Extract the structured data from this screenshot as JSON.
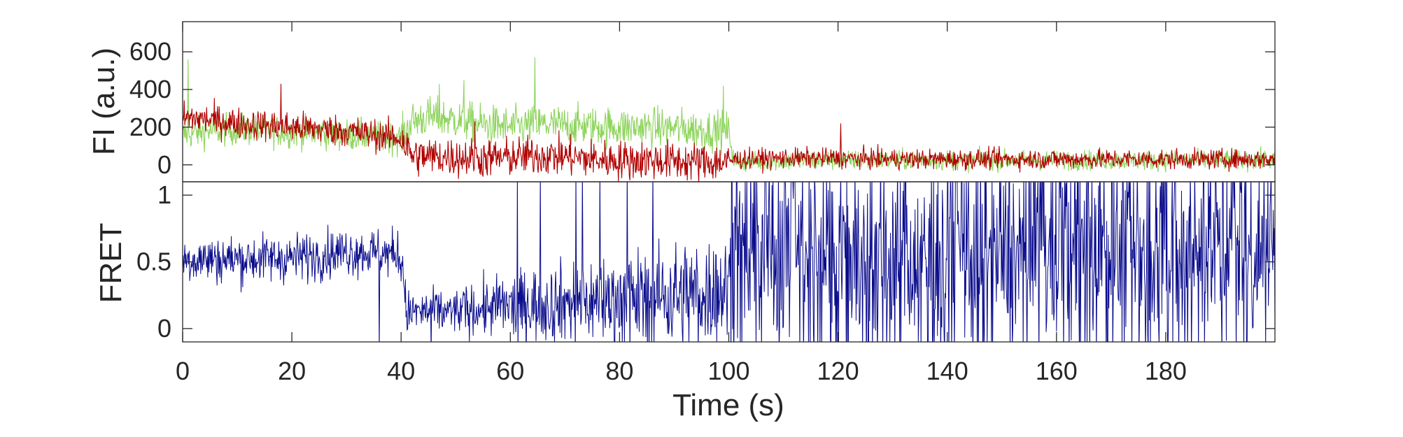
{
  "chart_data": [
    {
      "type": "line",
      "ylabel": "FI (a.u.)",
      "xlim": [
        0,
        200
      ],
      "ylim": [
        -90,
        760
      ],
      "yticks": [
        0,
        200,
        400,
        600
      ],
      "ytick_labels": [
        "0",
        "200",
        "400",
        "600"
      ],
      "grid": false,
      "colors": {
        "donor": "#8fd45e",
        "acceptor": "#b00000"
      },
      "series": [
        {
          "key": "donor",
          "x": [
            0,
            5,
            10,
            15,
            20,
            25,
            30,
            35,
            40,
            42,
            45,
            50,
            55,
            60,
            65,
            70,
            75,
            80,
            85,
            90,
            95,
            100,
            101,
            110,
            120,
            130,
            140,
            150,
            160,
            170,
            180,
            190,
            200
          ],
          "values": [
            160,
            180,
            190,
            180,
            175,
            170,
            160,
            150,
            140,
            230,
            255,
            240,
            215,
            200,
            215,
            210,
            205,
            200,
            200,
            195,
            185,
            180,
            10,
            20,
            25,
            25,
            25,
            25,
            25,
            25,
            25,
            25,
            25
          ],
          "spikes": [
            {
              "x": 1,
              "y": 560
            },
            {
              "x": 47,
              "y": 430
            },
            {
              "x": 51.5,
              "y": 450
            },
            {
              "x": 64.5,
              "y": 570
            },
            {
              "x": 99,
              "y": 420
            }
          ]
        },
        {
          "key": "acceptor",
          "x": [
            0,
            5,
            10,
            15,
            20,
            25,
            30,
            35,
            40,
            42,
            45,
            50,
            55,
            60,
            65,
            70,
            75,
            80,
            85,
            90,
            95,
            100,
            101,
            110,
            120,
            130,
            140,
            150,
            160,
            170,
            180,
            190,
            200
          ],
          "values": [
            250,
            240,
            220,
            210,
            200,
            190,
            180,
            160,
            140,
            50,
            45,
            40,
            35,
            40,
            50,
            45,
            30,
            25,
            25,
            20,
            15,
            15,
            30,
            35,
            35,
            30,
            30,
            30,
            30,
            30,
            30,
            30,
            30
          ],
          "spikes": [
            {
              "x": 18,
              "y": 430
            },
            {
              "x": 53.5,
              "y": 230
            },
            {
              "x": 120.5,
              "y": 220
            }
          ]
        }
      ]
    },
    {
      "type": "line",
      "xlabel": "Time (s)",
      "ylabel": "FRET",
      "xlim": [
        0,
        200
      ],
      "ylim": [
        -0.1,
        1.1
      ],
      "xticks": [
        0,
        20,
        40,
        60,
        80,
        100,
        120,
        140,
        160,
        180
      ],
      "xtick_labels": [
        "0",
        "20",
        "40",
        "60",
        "80",
        "100",
        "120",
        "140",
        "160",
        "180"
      ],
      "yticks": [
        0,
        0.5,
        1
      ],
      "ytick_labels": [
        "0",
        "0.5",
        "1"
      ],
      "grid": false,
      "colors": {
        "fret": "#0a0c8c"
      },
      "series": [
        {
          "key": "fret",
          "x": [
            0,
            10,
            20,
            25,
            30,
            35,
            40,
            41,
            50,
            60,
            70,
            80,
            90,
            100,
            101,
            120,
            140,
            160,
            180,
            200
          ],
          "values": [
            0.52,
            0.52,
            0.53,
            0.55,
            0.58,
            0.57,
            0.55,
            0.12,
            0.13,
            0.17,
            0.2,
            0.22,
            0.25,
            0.3,
            0.55,
            0.55,
            0.55,
            0.55,
            0.55,
            0.55
          ],
          "spread": [
            0.13,
            0.13,
            0.13,
            0.13,
            0.13,
            0.13,
            0.13,
            0.12,
            0.12,
            0.18,
            0.22,
            0.25,
            0.28,
            0.3,
            0.45,
            0.5,
            0.5,
            0.5,
            0.5,
            0.5
          ]
        }
      ]
    }
  ]
}
